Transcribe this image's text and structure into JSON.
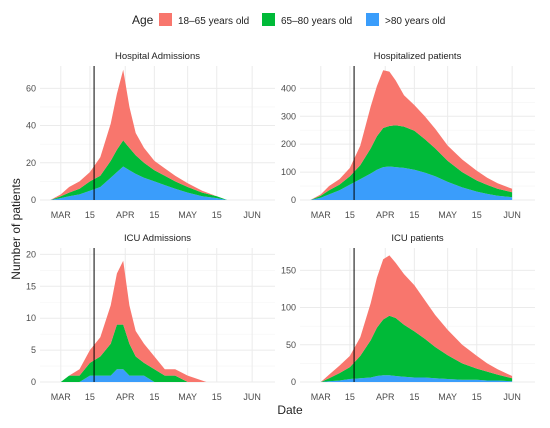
{
  "figure": {
    "legend_title": "Age",
    "xlabel": "Date",
    "ylabel": "Number of patients",
    "colors": {
      "18-65": "#f8766d",
      "65-80": "#00ba38",
      ">80": "#3a9dfb",
      "vline": "#000000"
    }
  },
  "chart_data": [
    {
      "type": "area",
      "title": "Hospital Admissions",
      "stacked": true,
      "x_unit": "date (2020)",
      "x_ticks": [
        "MAR",
        "15",
        "APR",
        "15",
        "MAY",
        "15",
        "JUN"
      ],
      "ylim": [
        0,
        72
      ],
      "y_ticks": [
        0,
        20,
        40,
        60
      ],
      "vline": "Mar 17",
      "grid": true,
      "legend": "top",
      "x": [
        "Feb 25",
        "Mar 1",
        "Mar 5",
        "Mar 10",
        "Mar 15",
        "Mar 20",
        "Mar 25",
        "Mar 28",
        "Mar 31",
        "Apr 3",
        "Apr 6",
        "Apr 10",
        "Apr 15",
        "Apr 20",
        "Apr 25",
        "May 1",
        "May 8",
        "May 15",
        "May 20"
      ],
      "series": [
        {
          "name": ">80 years old",
          "values": [
            0,
            1,
            2,
            3,
            5,
            7,
            12,
            15,
            18,
            16,
            14,
            12,
            10,
            8,
            6,
            4,
            2,
            1,
            0
          ]
        },
        {
          "name": "65–80 years old",
          "values": [
            0,
            1,
            2,
            3,
            5,
            6,
            9,
            12,
            14,
            12,
            10,
            8,
            6,
            5,
            4,
            3,
            2,
            1,
            0
          ]
        },
        {
          "name": "18–65 years old",
          "values": [
            0,
            1,
            3,
            4,
            5,
            10,
            20,
            30,
            38,
            22,
            12,
            8,
            5,
            4,
            3,
            2,
            1,
            0,
            0
          ]
        }
      ]
    },
    {
      "type": "area",
      "title": "Hospitalized patients",
      "stacked": true,
      "x_unit": "date (2020)",
      "x_ticks": [
        "MAR",
        "15",
        "APR",
        "15",
        "MAY",
        "15",
        "JUN"
      ],
      "ylim": [
        0,
        480
      ],
      "y_ticks": [
        0,
        100,
        200,
        300,
        400
      ],
      "vline": "Mar 17",
      "grid": true,
      "x": [
        "Feb 25",
        "Mar 1",
        "Mar 5",
        "Mar 10",
        "Mar 15",
        "Mar 20",
        "Mar 25",
        "Mar 28",
        "Mar 31",
        "Apr 3",
        "Apr 6",
        "Apr 10",
        "Apr 15",
        "Apr 20",
        "Apr 25",
        "May 1",
        "May 8",
        "May 15",
        "May 20",
        "May 25",
        "Jun 1"
      ],
      "series": [
        {
          "name": ">80 years old",
          "values": [
            0,
            8,
            20,
            35,
            55,
            75,
            95,
            108,
            118,
            120,
            118,
            115,
            108,
            98,
            85,
            65,
            45,
            30,
            22,
            15,
            10
          ]
        },
        {
          "name": "65–80 years old",
          "values": [
            0,
            7,
            15,
            20,
            30,
            50,
            90,
            120,
            140,
            145,
            150,
            148,
            140,
            120,
            100,
            75,
            55,
            40,
            32,
            25,
            18
          ]
        },
        {
          "name": "18–65 years old",
          "values": [
            0,
            5,
            15,
            20,
            30,
            70,
            150,
            180,
            207,
            195,
            160,
            112,
            92,
            82,
            70,
            55,
            45,
            35,
            26,
            20,
            12
          ]
        }
      ]
    },
    {
      "type": "area",
      "title": "ICU Admissions",
      "stacked": true,
      "x_unit": "date (2020)",
      "x_ticks": [
        "MAR",
        "15",
        "APR",
        "15",
        "MAY",
        "15",
        "JUN"
      ],
      "ylim": [
        0,
        21
      ],
      "y_ticks": [
        0,
        5,
        10,
        15,
        20
      ],
      "vline": "Mar 17",
      "grid": true,
      "x": [
        "Mar 1",
        "Mar 5",
        "Mar 10",
        "Mar 15",
        "Mar 20",
        "Mar 25",
        "Mar 28",
        "Mar 31",
        "Apr 3",
        "Apr 6",
        "Apr 10",
        "Apr 15",
        "Apr 20",
        "Apr 25",
        "May 1",
        "May 10"
      ],
      "series": [
        {
          "name": ">80 years old",
          "values": [
            0,
            0,
            0,
            1,
            1,
            1,
            2,
            2,
            1,
            1,
            1,
            0,
            0,
            0,
            0,
            0
          ]
        },
        {
          "name": "65–80 years old",
          "values": [
            0,
            1,
            1,
            2,
            3,
            5,
            7,
            7,
            5,
            3,
            2,
            2,
            1,
            1,
            0,
            0
          ]
        },
        {
          "name": "18–65 years old",
          "values": [
            0,
            0,
            1,
            2,
            3,
            6,
            8,
            10,
            6,
            4,
            3,
            2,
            1,
            1,
            1,
            0
          ]
        }
      ]
    },
    {
      "type": "area",
      "title": "ICU patients",
      "stacked": true,
      "x_unit": "date (2020)",
      "x_ticks": [
        "MAR",
        "15",
        "APR",
        "15",
        "MAY",
        "15",
        "JUN"
      ],
      "ylim": [
        0,
        180
      ],
      "y_ticks": [
        0,
        50,
        100,
        150
      ],
      "vline": "Mar 17",
      "grid": true,
      "x": [
        "Mar 1",
        "Mar 5",
        "Mar 10",
        "Mar 15",
        "Mar 20",
        "Mar 25",
        "Mar 28",
        "Mar 31",
        "Apr 3",
        "Apr 6",
        "Apr 10",
        "Apr 15",
        "Apr 20",
        "Apr 25",
        "May 1",
        "May 8",
        "May 15",
        "May 20",
        "May 25",
        "Jun 1"
      ],
      "series": [
        {
          "name": ">80 years old",
          "values": [
            0,
            1,
            2,
            4,
            5,
            6,
            8,
            9,
            9,
            8,
            7,
            6,
            6,
            5,
            4,
            3,
            3,
            2,
            2,
            1
          ]
        },
        {
          "name": "65–80 years old",
          "values": [
            0,
            4,
            10,
            16,
            30,
            50,
            65,
            75,
            80,
            78,
            70,
            62,
            52,
            42,
            32,
            22,
            15,
            12,
            8,
            4
          ]
        },
        {
          "name": "18–65 years old",
          "values": [
            0,
            5,
            10,
            15,
            25,
            50,
            67,
            81,
            81,
            74,
            68,
            62,
            52,
            43,
            34,
            25,
            17,
            11,
            7,
            3
          ]
        }
      ]
    }
  ]
}
